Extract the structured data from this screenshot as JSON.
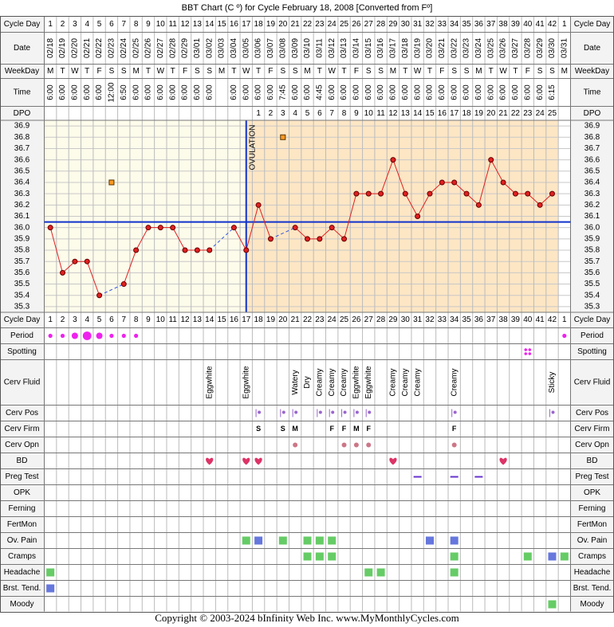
{
  "chart_data": {
    "type": "line",
    "title": "BBT Chart (C º) for Cycle February 18, 2008  [Converted from Fº]",
    "footer": "Copyright © 2003-2024 bInfinity Web Inc.     www.MyMonthlyCycles.com",
    "row_labels": {
      "cycle_day": "Cycle Day",
      "date": "Date",
      "weekday": "WeekDay",
      "time": "Time",
      "dpo": "DPO"
    },
    "cycle_days": [
      1,
      2,
      3,
      4,
      5,
      6,
      7,
      8,
      9,
      10,
      11,
      12,
      13,
      14,
      15,
      16,
      17,
      18,
      19,
      20,
      21,
      22,
      23,
      24,
      25,
      26,
      27,
      28,
      29,
      30,
      31,
      32,
      33,
      34,
      35,
      36,
      37,
      38,
      39,
      40,
      41,
      42,
      1
    ],
    "dates": [
      "02/18",
      "02/19",
      "02/20",
      "02/21",
      "02/22",
      "02/23",
      "02/24",
      "02/25",
      "02/26",
      "02/27",
      "02/28",
      "02/29",
      "03/01",
      "03/02",
      "03/03",
      "03/04",
      "03/05",
      "03/06",
      "03/07",
      "03/08",
      "03/09",
      "03/10",
      "03/11",
      "03/12",
      "03/13",
      "03/14",
      "03/15",
      "03/16",
      "03/17",
      "03/18",
      "03/19",
      "03/20",
      "03/21",
      "03/22",
      "03/23",
      "03/24",
      "03/25",
      "03/26",
      "03/27",
      "03/28",
      "03/29",
      "03/30",
      "03/31"
    ],
    "weekdays": [
      "M",
      "T",
      "W",
      "T",
      "F",
      "S",
      "S",
      "M",
      "T",
      "W",
      "T",
      "F",
      "S",
      "S",
      "M",
      "T",
      "W",
      "T",
      "F",
      "S",
      "S",
      "M",
      "T",
      "W",
      "T",
      "F",
      "S",
      "S",
      "M",
      "T",
      "W",
      "T",
      "F",
      "S",
      "S",
      "M",
      "T",
      "W",
      "T",
      "F",
      "S",
      "S",
      "M"
    ],
    "times": [
      "6:00",
      "6:00",
      "6:00",
      "6:00",
      "6:00",
      "12:00",
      "6:50",
      "6:00",
      "6:00",
      "6:00",
      "6:00",
      "6:00",
      "6:00",
      "6:00",
      null,
      "6:00",
      "6:00",
      "6:00",
      "6:00",
      "7:45",
      "6:00",
      "6:00",
      "4:45",
      "6:00",
      "6:00",
      "6:00",
      "6:00",
      "6:00",
      "6:00",
      "6:00",
      "6:00",
      "6:00",
      "6:00",
      "6:00",
      "6:00",
      "6:00",
      "6:00",
      "6:00",
      "6:00",
      "6:00",
      "6:00",
      "6:15",
      null
    ],
    "dpo": [
      null,
      null,
      null,
      null,
      null,
      null,
      null,
      null,
      null,
      null,
      null,
      null,
      null,
      null,
      null,
      null,
      null,
      1,
      2,
      3,
      4,
      5,
      6,
      7,
      8,
      9,
      10,
      11,
      12,
      13,
      14,
      15,
      16,
      17,
      18,
      19,
      20,
      21,
      22,
      23,
      24,
      25,
      null
    ],
    "values": [
      36.0,
      35.6,
      35.7,
      35.7,
      35.4,
      null,
      35.5,
      35.8,
      36.0,
      36.0,
      36.0,
      35.8,
      35.8,
      35.8,
      null,
      36.0,
      35.8,
      36.2,
      35.9,
      null,
      36.0,
      35.9,
      35.9,
      36.0,
      35.9,
      36.3,
      36.3,
      36.3,
      36.6,
      36.3,
      36.1,
      36.3,
      36.4,
      36.4,
      36.3,
      36.2,
      36.6,
      36.4,
      36.3,
      36.3,
      36.2,
      36.3,
      null
    ],
    "color": "#e02020",
    "discarded": [
      null,
      null,
      null,
      null,
      null,
      36.4,
      null,
      null,
      null,
      null,
      null,
      null,
      null,
      null,
      null,
      null,
      null,
      null,
      null,
      36.8,
      null,
      null,
      null,
      null,
      null,
      null,
      null,
      null,
      null,
      null,
      null,
      null,
      null,
      null,
      null,
      null,
      null,
      null,
      null,
      null,
      null,
      null,
      null
    ],
    "coverline": 36.05,
    "ovulation_day": 17,
    "ovulation_label": "OVULATION",
    "ylim": [
      35.25,
      36.95
    ],
    "yticks": [
      36.9,
      36.8,
      36.7,
      36.6,
      36.5,
      36.4,
      36.3,
      36.2,
      36.1,
      {
        "value": 36,
        "label": "36.0"
      },
      35.9,
      35.8,
      35.7,
      35.6,
      35.5,
      35.4,
      35.3
    ],
    "grid": true,
    "lower_rows": [
      {
        "label": "Period",
        "marker": "dot",
        "color": "#ee22ee",
        "values": [
          1,
          1,
          2,
          3,
          2,
          1,
          1,
          1,
          null,
          null,
          null,
          null,
          null,
          null,
          null,
          null,
          null,
          null,
          null,
          null,
          null,
          null,
          null,
          null,
          null,
          null,
          null,
          null,
          null,
          null,
          null,
          null,
          null,
          null,
          null,
          null,
          null,
          null,
          null,
          null,
          null,
          null,
          1
        ]
      },
      {
        "label": "Spotting",
        "marker": "dots4",
        "color": "#ee22ee",
        "values": [
          null,
          null,
          null,
          null,
          null,
          null,
          null,
          null,
          null,
          null,
          null,
          null,
          null,
          null,
          null,
          null,
          null,
          null,
          null,
          null,
          null,
          null,
          null,
          null,
          null,
          null,
          null,
          null,
          null,
          null,
          null,
          null,
          null,
          null,
          null,
          null,
          null,
          null,
          null,
          1,
          null,
          null,
          null
        ]
      },
      {
        "label": "Cerv Fluid",
        "marker": "text",
        "values": [
          null,
          null,
          null,
          null,
          null,
          null,
          null,
          null,
          null,
          null,
          null,
          null,
          null,
          "Eggwhite",
          null,
          null,
          "Eggwhite",
          null,
          null,
          null,
          "Watery",
          "Dry",
          "Creamy",
          "Creamy",
          "Creamy",
          "Eggwhite",
          "Eggwhite",
          null,
          "Creamy",
          "Creamy",
          "Creamy",
          null,
          null,
          "Creamy",
          null,
          null,
          null,
          null,
          null,
          null,
          null,
          "Sticky",
          null
        ]
      },
      {
        "label": "Cerv Pos",
        "marker": "pos",
        "color": "#9966cc",
        "values": [
          null,
          null,
          null,
          null,
          null,
          null,
          null,
          null,
          null,
          null,
          null,
          null,
          null,
          null,
          null,
          null,
          null,
          1,
          null,
          1,
          1,
          null,
          1,
          1,
          1,
          1,
          1,
          null,
          null,
          null,
          null,
          null,
          null,
          1,
          null,
          null,
          null,
          null,
          null,
          null,
          null,
          1,
          null
        ]
      },
      {
        "label": "Cerv Firm",
        "marker": "letter",
        "color": "#9966cc",
        "values": [
          null,
          null,
          null,
          null,
          null,
          null,
          null,
          null,
          null,
          null,
          null,
          null,
          null,
          null,
          null,
          null,
          null,
          "S",
          null,
          "S",
          "M",
          null,
          null,
          "F",
          "F",
          "M",
          "F",
          null,
          null,
          null,
          null,
          null,
          null,
          "F",
          null,
          null,
          null,
          null,
          null,
          null,
          null,
          null,
          null
        ]
      },
      {
        "label": "Cerv Opn",
        "marker": "circle",
        "color": "#cc7788",
        "values": [
          null,
          null,
          null,
          null,
          null,
          null,
          null,
          null,
          null,
          null,
          null,
          null,
          null,
          null,
          null,
          null,
          null,
          null,
          null,
          null,
          1,
          null,
          null,
          null,
          1,
          1,
          1,
          null,
          null,
          null,
          null,
          null,
          null,
          1,
          null,
          null,
          null,
          null,
          null,
          null,
          null,
          null,
          null
        ]
      },
      {
        "label": "BD",
        "marker": "heart",
        "color": "#dd3366",
        "values": [
          null,
          null,
          null,
          null,
          null,
          null,
          null,
          null,
          null,
          null,
          null,
          null,
          null,
          1,
          null,
          null,
          1,
          1,
          null,
          null,
          null,
          null,
          null,
          null,
          null,
          null,
          null,
          null,
          1,
          null,
          null,
          null,
          null,
          null,
          null,
          null,
          null,
          1,
          null,
          null,
          null,
          null,
          null
        ]
      },
      {
        "label": "Preg Test",
        "marker": "dash",
        "color": "#6633cc",
        "values": [
          null,
          null,
          null,
          null,
          null,
          null,
          null,
          null,
          null,
          null,
          null,
          null,
          null,
          null,
          null,
          null,
          null,
          null,
          null,
          null,
          null,
          null,
          null,
          null,
          null,
          null,
          null,
          null,
          null,
          null,
          1,
          null,
          null,
          1,
          null,
          1,
          null,
          null,
          null,
          null,
          null,
          null,
          null
        ]
      },
      {
        "label": "OPK"
      },
      {
        "label": "Ferning"
      },
      {
        "label": "FertMon"
      },
      {
        "label": "Ov. Pain",
        "marker": "square",
        "colors": [
          "#66cc66",
          "#6677dd"
        ],
        "values": [
          null,
          null,
          null,
          null,
          null,
          null,
          null,
          null,
          null,
          null,
          null,
          null,
          null,
          null,
          null,
          null,
          1,
          2,
          null,
          1,
          null,
          1,
          1,
          1,
          null,
          null,
          null,
          null,
          null,
          null,
          null,
          2,
          null,
          2,
          null,
          null,
          null,
          null,
          null,
          null,
          null,
          null,
          null
        ]
      },
      {
        "label": "Cramps",
        "marker": "square",
        "colors": [
          "#66cc66",
          "#6677dd"
        ],
        "values": [
          null,
          null,
          null,
          null,
          null,
          null,
          null,
          null,
          null,
          null,
          null,
          null,
          null,
          null,
          null,
          null,
          null,
          null,
          null,
          null,
          null,
          1,
          1,
          1,
          null,
          null,
          null,
          null,
          null,
          null,
          null,
          null,
          null,
          1,
          null,
          null,
          null,
          null,
          null,
          1,
          null,
          2,
          1
        ]
      },
      {
        "label": "Headache",
        "marker": "square",
        "colors": [
          "#66cc66",
          "#6677dd"
        ],
        "values": [
          1,
          null,
          null,
          null,
          null,
          null,
          null,
          null,
          null,
          null,
          null,
          null,
          null,
          null,
          null,
          null,
          null,
          null,
          null,
          null,
          null,
          null,
          null,
          null,
          null,
          null,
          1,
          1,
          null,
          null,
          null,
          null,
          null,
          1,
          null,
          null,
          null,
          null,
          null,
          null,
          null,
          null,
          null
        ]
      },
      {
        "label": "Brst. Tend.",
        "marker": "square",
        "colors": [
          "#66cc66",
          "#6677dd"
        ],
        "values": [
          2,
          null,
          null,
          null,
          null,
          null,
          null,
          null,
          null,
          null,
          null,
          null,
          null,
          null,
          null,
          null,
          null,
          null,
          null,
          null,
          null,
          null,
          null,
          null,
          null,
          null,
          null,
          null,
          null,
          null,
          null,
          null,
          null,
          null,
          null,
          null,
          null,
          null,
          null,
          null,
          null,
          null,
          null
        ]
      },
      {
        "label": "Moody",
        "marker": "square",
        "colors": [
          "#66cc66",
          "#6677dd"
        ],
        "values": [
          null,
          null,
          null,
          null,
          null,
          null,
          null,
          null,
          null,
          null,
          null,
          null,
          null,
          null,
          null,
          null,
          null,
          null,
          null,
          null,
          null,
          null,
          null,
          null,
          null,
          null,
          null,
          null,
          null,
          null,
          null,
          null,
          null,
          null,
          null,
          null,
          null,
          null,
          null,
          null,
          null,
          1,
          null
        ]
      }
    ]
  }
}
